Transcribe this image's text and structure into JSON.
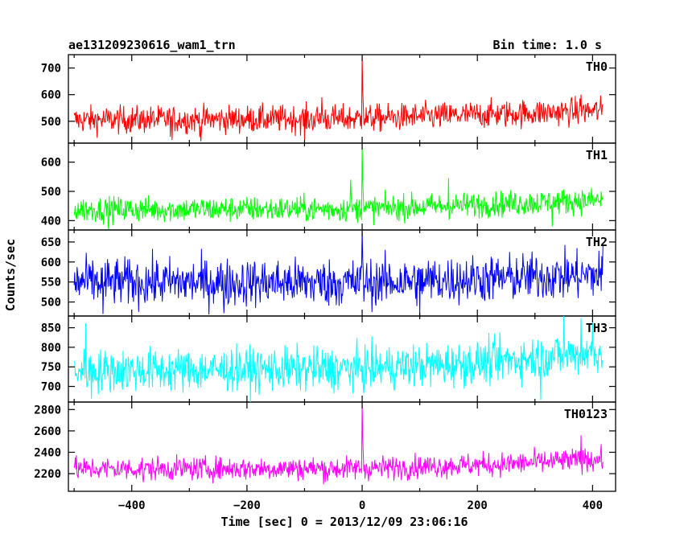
{
  "header": {
    "title": "ae131209230616_wam1_trn",
    "bin_time": "Bin time: 1.0 s"
  },
  "axes": {
    "xlabel": "Time [sec] 0 = 2013/12/09 23:06:16",
    "ylabel": "Counts/sec"
  },
  "chart_data": {
    "type": "line",
    "xlim": [
      -510,
      440
    ],
    "x_ticks": [
      -400,
      -200,
      0,
      200,
      400
    ],
    "x_tick_labels": [
      "−400",
      "−200",
      "0",
      "200",
      "400"
    ],
    "x_range_data": [
      -500,
      418
    ],
    "bin_time": 1.0,
    "panels": [
      {
        "name": "TH0",
        "color": "#ff0000",
        "ylim": [
          418,
          750
        ],
        "yticks": [
          500,
          600,
          700
        ],
        "ytick_labels": [
          "500",
          "600",
          "700"
        ],
        "baseline": [
          [
            -500,
            505
          ],
          [
            0,
            510
          ],
          [
            418,
            540
          ]
        ],
        "noise": 26,
        "spike": {
          "x": 0,
          "peak": 750
        },
        "extremes": [
          [
            -330,
            430
          ],
          [
            -280,
            425
          ],
          [
            -100,
            430
          ],
          [
            -70,
            590
          ],
          [
            380,
            600
          ]
        ]
      },
      {
        "name": "TH1",
        "color": "#00ff00",
        "ylim": [
          368,
          665
        ],
        "yticks": [
          400,
          500,
          600
        ],
        "ytick_labels": [
          "400",
          "500",
          "600"
        ],
        "baseline": [
          [
            -500,
            438
          ],
          [
            0,
            440
          ],
          [
            418,
            470
          ]
        ],
        "noise": 22,
        "spike": {
          "x": 0,
          "peak": 660
        },
        "extremes": [
          [
            -440,
            370
          ],
          [
            -20,
            540
          ],
          [
            150,
            545
          ],
          [
            330,
            380
          ]
        ]
      },
      {
        "name": "TH2",
        "color": "#0000ff",
        "ylim": [
          465,
          680
        ],
        "yticks": [
          500,
          550,
          600,
          650
        ],
        "ytick_labels": [
          "500",
          "550",
          "600",
          "650"
        ],
        "baseline": [
          [
            -500,
            550
          ],
          [
            0,
            548
          ],
          [
            418,
            568
          ]
        ],
        "noise": 30,
        "spike": {
          "x": 0,
          "peak": 680
        },
        "extremes": [
          [
            -450,
            470
          ],
          [
            -240,
            472
          ],
          [
            100,
            470
          ],
          [
            418,
            640
          ]
        ]
      },
      {
        "name": "TH3",
        "color": "#00ffff",
        "ylim": [
          660,
          880
        ],
        "yticks": [
          700,
          750,
          800,
          850
        ],
        "ytick_labels": [
          "700",
          "750",
          "800",
          "850"
        ],
        "baseline": [
          [
            -500,
            740
          ],
          [
            0,
            745
          ],
          [
            200,
            760
          ],
          [
            418,
            790
          ]
        ],
        "noise": 28,
        "spike": null,
        "extremes": [
          [
            -480,
            862
          ],
          [
            -470,
            668
          ],
          [
            310,
            665
          ],
          [
            350,
            880
          ],
          [
            380,
            875
          ],
          [
            400,
            870
          ]
        ]
      },
      {
        "name": "TH0123",
        "color": "#ff00ff",
        "ylim": [
          2035,
          2870
        ],
        "yticks": [
          2200,
          2400,
          2600,
          2800
        ],
        "ytick_labels": [
          "2200",
          "2400",
          "2600",
          "2800"
        ],
        "baseline": [
          [
            -500,
            2245
          ],
          [
            0,
            2250
          ],
          [
            250,
            2290
          ],
          [
            418,
            2340
          ]
        ],
        "noise": 55,
        "spike": {
          "x": 0,
          "peak": 2870
        },
        "extremes": [
          [
            -380,
            2120
          ],
          [
            -60,
            2130
          ],
          [
            380,
            2560
          ]
        ]
      }
    ]
  }
}
